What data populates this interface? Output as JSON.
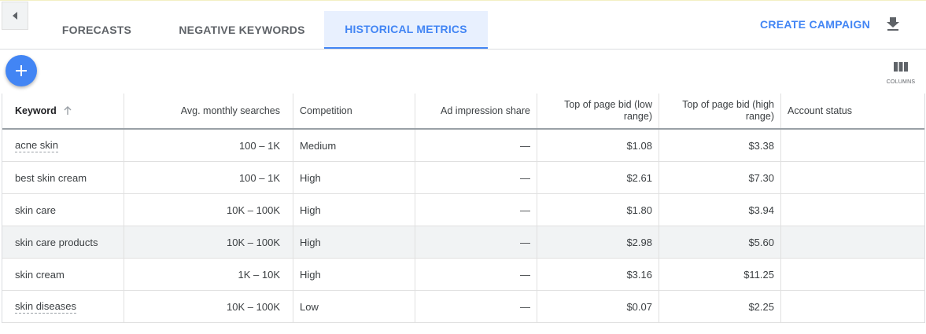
{
  "tabs": [
    {
      "label": "FORECASTS",
      "active": false
    },
    {
      "label": "NEGATIVE KEYWORDS",
      "active": false
    },
    {
      "label": "HISTORICAL METRICS",
      "active": true
    }
  ],
  "actions": {
    "create_campaign": "CREATE CAMPAIGN",
    "columns_label": "COLUMNS",
    "download_icon": "download-icon",
    "add_icon": "plus-icon"
  },
  "colors": {
    "accent": "#4285f4",
    "active_tab_bg": "#e8f0fe",
    "row_hover": "#f1f3f4"
  },
  "table": {
    "headers": {
      "keyword": "Keyword",
      "searches": "Avg. monthly searches",
      "competition": "Competition",
      "impression_share": "Ad impression share",
      "bid_low": "Top of page bid (low range)",
      "bid_high": "Top of page bid (high range)",
      "account_status": "Account status"
    },
    "rows": [
      {
        "keyword": "acne skin",
        "searches": "100 – 1K",
        "competition": "Medium",
        "impression_share": "—",
        "bid_low": "$1.08",
        "bid_high": "$3.38",
        "account_status": ""
      },
      {
        "keyword": "best skin cream",
        "searches": "100 – 1K",
        "competition": "High",
        "impression_share": "—",
        "bid_low": "$2.61",
        "bid_high": "$7.30",
        "account_status": ""
      },
      {
        "keyword": "skin care",
        "searches": "10K – 100K",
        "competition": "High",
        "impression_share": "—",
        "bid_low": "$1.80",
        "bid_high": "$3.94",
        "account_status": ""
      },
      {
        "keyword": "skin care products",
        "searches": "10K – 100K",
        "competition": "High",
        "impression_share": "—",
        "bid_low": "$2.98",
        "bid_high": "$5.60",
        "account_status": ""
      },
      {
        "keyword": "skin cream",
        "searches": "1K – 10K",
        "competition": "High",
        "impression_share": "—",
        "bid_low": "$3.16",
        "bid_high": "$11.25",
        "account_status": ""
      },
      {
        "keyword": "skin diseases",
        "searches": "10K – 100K",
        "competition": "Low",
        "impression_share": "—",
        "bid_low": "$0.07",
        "bid_high": "$2.25",
        "account_status": ""
      }
    ]
  }
}
